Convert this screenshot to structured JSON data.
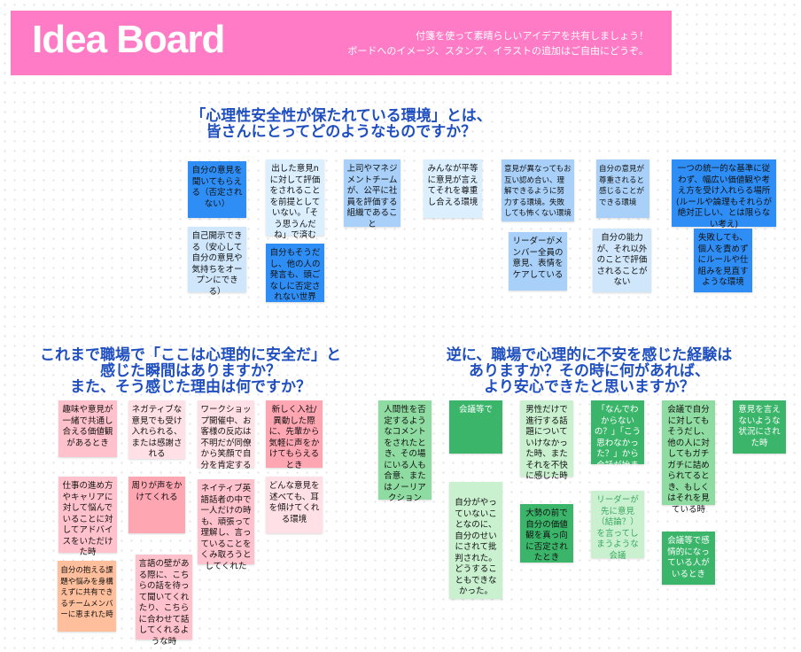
{
  "header": {
    "title": "Idea Board",
    "subtitle_line1": "付箋を使って素晴らしいアイデアを共有しましょう！",
    "subtitle_line2": "ボードへのイメージ、スタンプ、イラストの追加はご自由にどうぞ。"
  },
  "sections": [
    {
      "heading_line1": "「心理性安全性が保たれている環境」とは、",
      "heading_line2": "皆さんにとってどのようなものですか？",
      "notes": [
        "自分の意見を聞いてもらえる（否定されない）",
        "自己開示できる（安心して自分の意見や気持ちをオープンにできる）",
        "出した意見nに対して評価をされることを前提としていない。「そう思うんだね」で済む",
        "自分もそうだし、他の人の発言も、頭ごなしに否定されない世界",
        "上司やマネジメントチームが、公平に社員を評価する組織であること",
        "みんなが平等に意見が言えてそれを尊重し合える環境",
        "意見が異なってもお互い認め合い、理解できるように努力する環境。失敗しても怖くない環境",
        "リーダーがメンバー全員の意見、表情をケアしている",
        "自分の意見が尊重されると感じることができる環境",
        "自分の能力が、それ以外のことで評価されることがない",
        "一つの統一的な基準に従わず、幅広い価値観や考え方を受け入れらる場所(ルールや論理もそれらが絶対正しい、とは限らない考え)",
        "失敗しても、個人を責めずにルールや仕組みを見直すような環境"
      ]
    },
    {
      "heading_line1": "これまで職場で「ここは心理的に安全だ」と",
      "heading_line2": "感じた瞬間はありますか？",
      "heading_line3": "また、そう感じた理由は何ですか？",
      "notes": [
        "趣味や意見が一緒で共通し合える価値観があるとき",
        "ネガティブな意見でも受け入れられる、または感謝される",
        "ワークショップ開催中、お客様の反応は不明だが同僚から笑顔で自分を肯定する",
        "新しく入社/異動した際に、先輩から気軽に声をかけてもらえるとき",
        "仕事の進め方やキャリアに対して悩んでいることに対してアドバイスをいただけた時",
        "周りが声をかけてくれる",
        "ネイティブ英語話者の中で一人だけの時も、頑張って理解し、言っていることをくみ取ろうとしてくれた",
        "どんな意見を述べても、耳を傾けてくれる環境",
        "自分の抱える課題や悩みを身構えずに共有できるチームメンバーに恵まれた時",
        "言語の壁がある際に、こちらの話を待って聞いてくれたり、こちらに合わせて話してくれるような時"
      ]
    },
    {
      "heading_line1": "逆に、職場で心理的に不安を感じた経験は",
      "heading_line2": "ありますか？その時に何があれば、",
      "heading_line3": "より安心できたと思いますか？",
      "notes": [
        "人間性を否定するようなコメントをされたとき、その場にいる人も合意、またはノーリアクション",
        "会議等で",
        "男性だけで進行する話題についていけなかった時、またそれを不快に感じた時",
        "自分がやっていないことなのに、自分のせいにされて批判された。どうすることもできなかった。",
        "大勢の前で自分の価値観を真っ向に否定されたとき",
        "「なんでわからないの？」「こう思わなかった？」から会話が始まる時",
        "会議で自分に対してもそうだし、他の人に対してもガチガチに詰められてるとき、もしくはそれを見ている時",
        "意見を言えないような状況にされた時",
        "リーダーが先に意見（結論？）を言ってしまうような会議",
        "会議等で感情的になっている人がいるとき"
      ]
    }
  ],
  "colors": {
    "header": "#ff7bc5",
    "heading": "#1f4fbf",
    "blue_dark": "#2f8ef5",
    "pink": "#ffc2cc",
    "green_dark": "#3ab56a"
  }
}
